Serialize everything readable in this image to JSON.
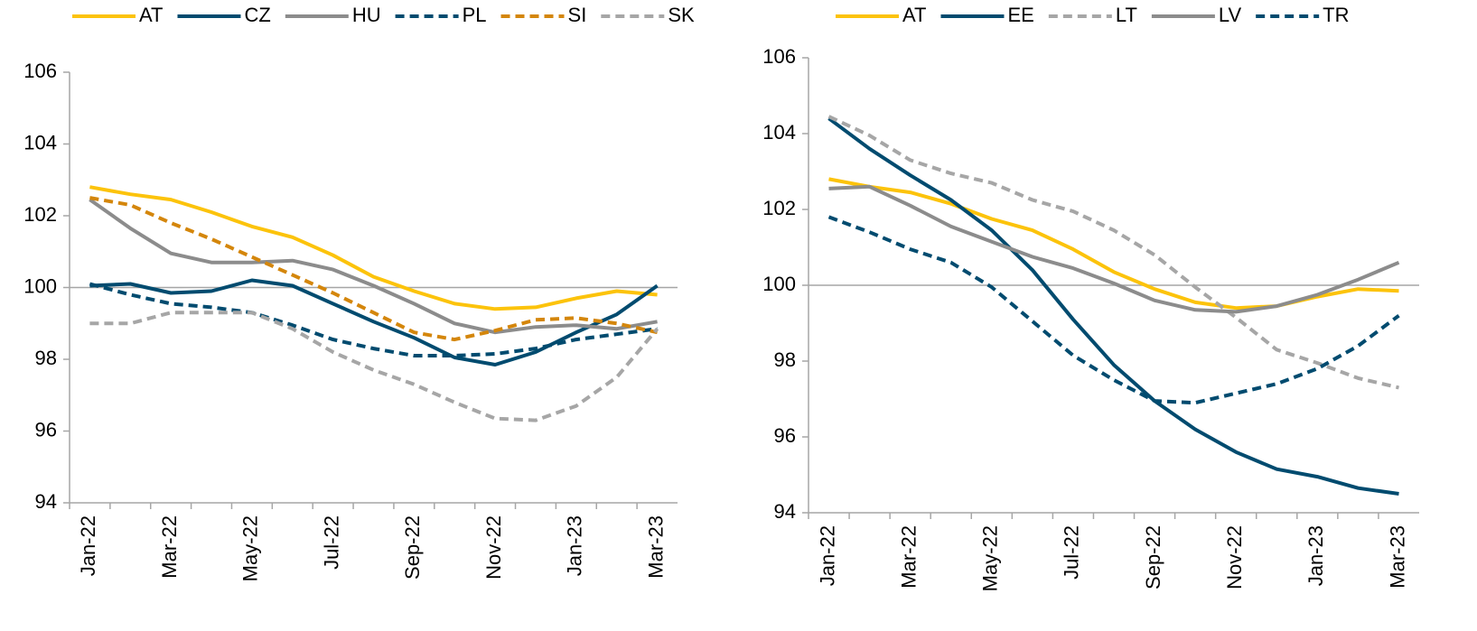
{
  "chart_data": [
    {
      "type": "line",
      "categories": [
        "Jan-22",
        null,
        "Mar-22",
        null,
        "May-22",
        null,
        "Jul-22",
        null,
        "Sep-22",
        null,
        "Nov-22",
        null,
        "Jan-23",
        null,
        "Mar-23"
      ],
      "ylim": [
        94,
        106
      ],
      "yticks": [
        94,
        96,
        98,
        100,
        102,
        104,
        106
      ],
      "hline": 100,
      "legend": "top",
      "series": [
        {
          "name": "AT",
          "color": "#fcc30b",
          "dash": false,
          "values": [
            102.8,
            102.6,
            102.45,
            102.1,
            101.7,
            101.4,
            100.9,
            100.3,
            99.9,
            99.55,
            99.4,
            99.45,
            99.7,
            99.9,
            99.8
          ]
        },
        {
          "name": "CZ",
          "color": "#004b6f",
          "dash": false,
          "values": [
            100.05,
            100.1,
            99.85,
            99.9,
            100.2,
            100.05,
            99.55,
            99.05,
            98.6,
            98.05,
            97.85,
            98.2,
            98.75,
            99.25,
            100.05
          ]
        },
        {
          "name": "HU",
          "color": "#8c8c8c",
          "dash": false,
          "values": [
            102.45,
            101.65,
            100.95,
            100.7,
            100.7,
            100.75,
            100.5,
            100.05,
            99.55,
            99.0,
            98.75,
            98.9,
            98.95,
            98.85,
            99.05
          ]
        },
        {
          "name": "PL",
          "color": "#004b6f",
          "dash": true,
          "values": [
            100.1,
            99.8,
            99.55,
            99.45,
            99.3,
            98.95,
            98.55,
            98.3,
            98.1,
            98.1,
            98.15,
            98.3,
            98.55,
            98.7,
            98.85
          ]
        },
        {
          "name": "SI",
          "color": "#d4860b",
          "dash": true,
          "values": [
            102.5,
            102.3,
            101.8,
            101.35,
            100.85,
            100.35,
            99.85,
            99.3,
            98.75,
            98.55,
            98.8,
            99.1,
            99.15,
            99.0,
            98.75
          ]
        },
        {
          "name": "SK",
          "color": "#a6a6a6",
          "dash": true,
          "values": [
            99.0,
            99.0,
            99.3,
            99.3,
            99.3,
            98.85,
            98.2,
            97.7,
            97.3,
            96.8,
            96.35,
            96.3,
            96.7,
            97.5,
            98.85
          ]
        }
      ]
    },
    {
      "type": "line",
      "categories": [
        "Jan-22",
        null,
        "Mar-22",
        null,
        "May-22",
        null,
        "Jul-22",
        null,
        "Sep-22",
        null,
        "Nov-22",
        null,
        "Jan-23",
        null,
        "Mar-23"
      ],
      "ylim": [
        94,
        106
      ],
      "yticks": [
        94,
        96,
        98,
        100,
        102,
        104,
        106
      ],
      "hline": 100,
      "legend": "top",
      "series": [
        {
          "name": "AT",
          "color": "#fcc30b",
          "dash": false,
          "values": [
            102.8,
            102.6,
            102.45,
            102.15,
            101.75,
            101.45,
            100.95,
            100.35,
            99.9,
            99.55,
            99.4,
            99.45,
            99.7,
            99.9,
            99.85
          ]
        },
        {
          "name": "EE",
          "color": "#004b6f",
          "dash": false,
          "values": [
            104.4,
            103.6,
            102.9,
            102.25,
            101.45,
            100.4,
            99.1,
            97.9,
            96.95,
            96.2,
            95.6,
            95.15,
            94.95,
            94.65,
            94.5
          ]
        },
        {
          "name": "LT",
          "color": "#a6a6a6",
          "dash": true,
          "values": [
            104.45,
            103.95,
            103.3,
            102.95,
            102.7,
            102.25,
            101.95,
            101.45,
            100.8,
            99.95,
            99.15,
            98.3,
            97.95,
            97.55,
            97.3
          ]
        },
        {
          "name": "LV",
          "color": "#8c8c8c",
          "dash": false,
          "values": [
            102.55,
            102.6,
            102.1,
            101.55,
            101.15,
            100.75,
            100.45,
            100.05,
            99.6,
            99.35,
            99.3,
            99.45,
            99.75,
            100.15,
            100.6
          ]
        },
        {
          "name": "TR",
          "color": "#004b6f",
          "dash": true,
          "values": [
            101.8,
            101.4,
            100.95,
            100.6,
            99.95,
            99.05,
            98.15,
            97.5,
            96.95,
            96.9,
            97.15,
            97.4,
            97.8,
            98.4,
            99.2
          ]
        }
      ]
    }
  ]
}
